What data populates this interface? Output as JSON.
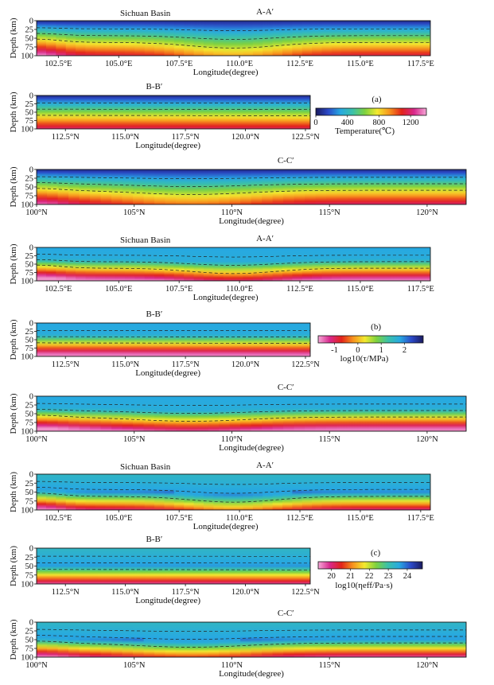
{
  "figure": {
    "panel_labels": [
      "(a)",
      "(b)",
      "(c)"
    ]
  },
  "chart_data": [
    {
      "type": "heatmap",
      "group": "a",
      "quantity": "temperature",
      "title": "A-A′",
      "annotation": "Sichuan Basin",
      "xlabel": "Longitude(degree)",
      "ylabel": "Depth (km)",
      "xlim": [
        101.6,
        117.9
      ],
      "ylim": [
        100,
        0
      ],
      "xticks": [
        "102.5°E",
        "105.0°E",
        "107.5°E",
        "110.0°E",
        "112.5°E",
        "115.0°E",
        "117.5°E"
      ],
      "yticks": [
        "0",
        "25",
        "50",
        "75",
        "100"
      ]
    },
    {
      "type": "heatmap",
      "group": "a",
      "quantity": "temperature",
      "title": "B-B′",
      "annotation": "",
      "xlabel": "Longitude(degree)",
      "ylabel": "Depth (km)",
      "xlim": [
        111.3,
        122.7
      ],
      "ylim": [
        100,
        0
      ],
      "xticks": [
        "112.5°N",
        "115.0°N",
        "117.5°N",
        "120.0°N",
        "122.5°N"
      ],
      "yticks": [
        "0",
        "25",
        "50",
        "75",
        "100"
      ]
    },
    {
      "type": "heatmap",
      "group": "a",
      "quantity": "temperature",
      "title": "C-C′",
      "annotation": "",
      "xlabel": "Longitude(degree)",
      "ylabel": "Depth (km)",
      "xlim": [
        100.0,
        122.0
      ],
      "ylim": [
        100,
        0
      ],
      "xticks": [
        "100°N",
        "105°N",
        "110°N",
        "115°N",
        "120°N"
      ],
      "yticks": [
        "0",
        "25",
        "50",
        "75",
        "100"
      ]
    },
    {
      "type": "heatmap",
      "group": "b",
      "quantity": "log10_stress",
      "title": "A-A′",
      "annotation": "Sichuan Basin",
      "xlabel": "Longitude(degree)",
      "ylabel": "Depth (km)",
      "xlim": [
        101.6,
        117.9
      ],
      "ylim": [
        100,
        0
      ],
      "xticks": [
        "102.5°E",
        "105.0°E",
        "107.5°E",
        "110.0°E",
        "112.5°E",
        "115.0°E",
        "117.5°E"
      ],
      "yticks": [
        "0",
        "25",
        "50",
        "75",
        "100"
      ]
    },
    {
      "type": "heatmap",
      "group": "b",
      "quantity": "log10_stress",
      "title": "B-B′",
      "annotation": "",
      "xlabel": "Longitude(degree)",
      "ylabel": "Depth (km)",
      "xlim": [
        111.3,
        122.7
      ],
      "ylim": [
        100,
        0
      ],
      "xticks": [
        "112.5°N",
        "115.0°N",
        "117.5°N",
        "120.0°N",
        "122.5°N"
      ],
      "yticks": [
        "0",
        "25",
        "50",
        "75",
        "100"
      ]
    },
    {
      "type": "heatmap",
      "group": "b",
      "quantity": "log10_stress",
      "title": "C-C′",
      "annotation": "",
      "xlabel": "Longitude(degree)",
      "ylabel": "Depth (km)",
      "xlim": [
        100.0,
        122.0
      ],
      "ylim": [
        100,
        0
      ],
      "xticks": [
        "100°N",
        "105°N",
        "110°N",
        "115°N",
        "120°N"
      ],
      "yticks": [
        "0",
        "25",
        "50",
        "75",
        "100"
      ]
    },
    {
      "type": "heatmap",
      "group": "c",
      "quantity": "log10_viscosity",
      "title": "A-A′",
      "annotation": "Sichuan Basin",
      "xlabel": "Longitude(degree)",
      "ylabel": "Depth (km)",
      "xlim": [
        101.6,
        117.9
      ],
      "ylim": [
        100,
        0
      ],
      "xticks": [
        "102.5°E",
        "105.0°E",
        "107.5°E",
        "110.0°E",
        "112.5°E",
        "115.0°E",
        "117.5°E"
      ],
      "yticks": [
        "0",
        "25",
        "50",
        "75",
        "100"
      ]
    },
    {
      "type": "heatmap",
      "group": "c",
      "quantity": "log10_viscosity",
      "title": "B-B′",
      "annotation": "",
      "xlabel": "Longitude(degree)",
      "ylabel": "Depth (km)",
      "xlim": [
        111.3,
        122.7
      ],
      "ylim": [
        100,
        0
      ],
      "xticks": [
        "112.5°N",
        "115.0°N",
        "117.5°N",
        "120.0°N",
        "122.5°N"
      ],
      "yticks": [
        "0",
        "25",
        "50",
        "75",
        "100"
      ]
    },
    {
      "type": "heatmap",
      "group": "c",
      "quantity": "log10_viscosity",
      "title": "C-C′",
      "annotation": "",
      "xlabel": "Longitude(degree)",
      "ylabel": "Depth (km)",
      "xlim": [
        100.0,
        122.0
      ],
      "ylim": [
        100,
        0
      ],
      "xticks": [
        "100°N",
        "105°N",
        "110°N",
        "115°N",
        "120°N"
      ],
      "yticks": [
        "0",
        "25",
        "50",
        "75",
        "100"
      ]
    }
  ],
  "colorbars": [
    {
      "group": "a",
      "label": "Temperature(℃)",
      "ticks": [
        "0",
        "400",
        "800",
        "1200"
      ],
      "range": [
        0,
        1400
      ],
      "colors": [
        "#1a1a5e",
        "#2b49c8",
        "#27a9e1",
        "#3bc1a8",
        "#7ed23f",
        "#f3e92f",
        "#f7941e",
        "#e2231a",
        "#d8288c",
        "#f6a8d8"
      ]
    },
    {
      "group": "b",
      "label": "log10(τ/MPa)",
      "ticks": [
        "-1",
        "0",
        "1",
        "2"
      ],
      "range": [
        -1.7,
        2.8
      ],
      "colors": [
        "#f6a8d8",
        "#d8288c",
        "#e2231a",
        "#f7941e",
        "#f3e92f",
        "#7ed23f",
        "#3bc1a8",
        "#27a9e1",
        "#2b49c8",
        "#1a1a5e"
      ]
    },
    {
      "group": "c",
      "label": "log10(ηeff/Pa·s)",
      "ticks": [
        "20",
        "21",
        "22",
        "23",
        "24"
      ],
      "range": [
        19.3,
        24.8
      ],
      "colors": [
        "#f6a8d8",
        "#d8288c",
        "#e2231a",
        "#f7941e",
        "#f3e92f",
        "#7ed23f",
        "#3bc1a8",
        "#27a9e1",
        "#2b49c8",
        "#1a1a5e"
      ]
    }
  ]
}
